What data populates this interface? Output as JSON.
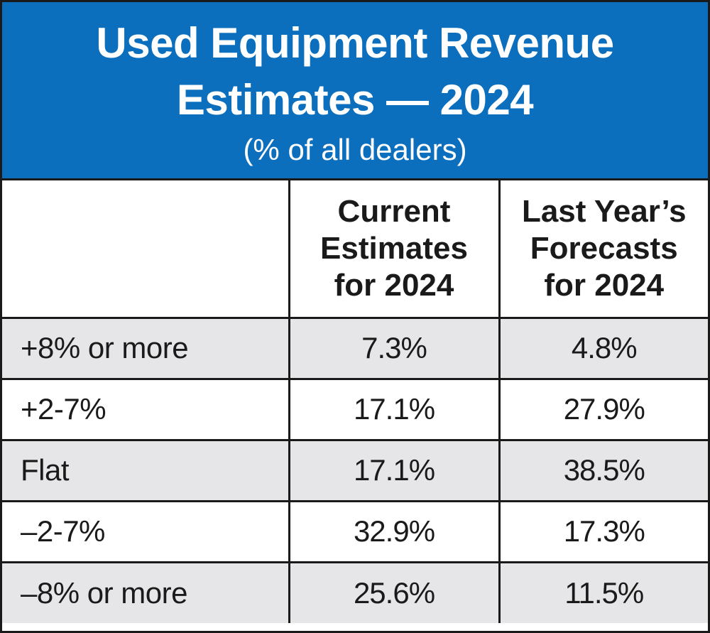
{
  "chart_data": {
    "type": "table",
    "title": "Used Equipment Revenue Estimates — 2024",
    "subtitle": "(% of all dealers)",
    "columns": [
      "",
      "Current Estimates for 2024",
      "Last Year’s Forecasts for 2024"
    ],
    "column_header_lines": [
      [],
      [
        "Current",
        "Estimates",
        "for 2024"
      ],
      [
        "Last Year’s",
        "Forecasts",
        "for 2024"
      ]
    ],
    "categories": [
      "+8% or more",
      "+2-7%",
      "Flat",
      "–2-7%",
      "–8% or more"
    ],
    "series": [
      {
        "name": "Current Estimates for 2024",
        "values": [
          7.3,
          17.1,
          17.1,
          32.9,
          25.6
        ]
      },
      {
        "name": "Last Year’s Forecasts for 2024",
        "values": [
          4.8,
          27.9,
          38.5,
          17.3,
          11.5
        ]
      }
    ],
    "rows": [
      {
        "label": "+8% or more",
        "current": "7.3%",
        "last": "4.8%"
      },
      {
        "label": "+2-7%",
        "current": "17.1%",
        "last": "27.9%"
      },
      {
        "label": "Flat",
        "current": "17.1%",
        "last": "38.5%"
      },
      {
        "label": "–2-7%",
        "current": "32.9%",
        "last": "17.3%"
      },
      {
        "label": "–8% or more",
        "current": "25.6%",
        "last": "11.5%"
      }
    ]
  },
  "header": {
    "title_line1": "Used Equipment Revenue",
    "title_line2": "Estimates — 2024",
    "subtitle": "(% of all dealers)"
  },
  "colors": {
    "header_bg": "#0b6fbe",
    "header_text": "#ffffff",
    "shaded_row": "#e6e6e8",
    "border": "#1a1a1a"
  }
}
